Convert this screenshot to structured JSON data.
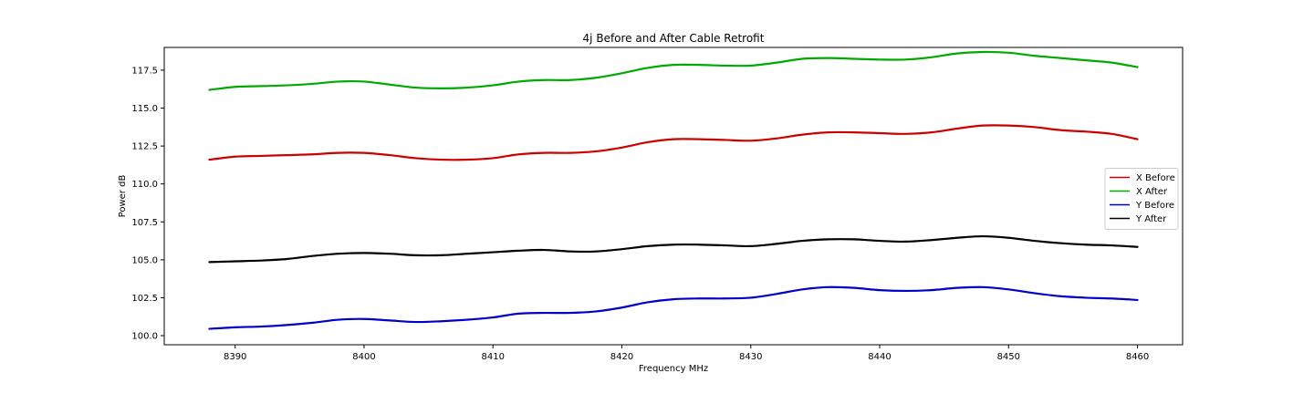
{
  "chart_data": {
    "type": "line",
    "title": "4j Before and After Cable Retrofit",
    "xlabel": "Frequency MHz",
    "ylabel": "Power dB",
    "xlim": [
      8384.5,
      8463.5
    ],
    "ylim": [
      99.4,
      119.0
    ],
    "xticks": [
      8390,
      8400,
      8410,
      8420,
      8430,
      8440,
      8450,
      8460
    ],
    "yticks": [
      100.0,
      102.5,
      105.0,
      107.5,
      110.0,
      112.5,
      115.0,
      117.5
    ],
    "grid": false,
    "legend_position": "center-right",
    "x": [
      8388,
      8390,
      8392,
      8394,
      8396,
      8398,
      8400,
      8402,
      8404,
      8406,
      8408,
      8410,
      8412,
      8414,
      8416,
      8418,
      8420,
      8422,
      8424,
      8426,
      8428,
      8430,
      8432,
      8434,
      8436,
      8438,
      8440,
      8442,
      8444,
      8446,
      8448,
      8450,
      8452,
      8454,
      8456,
      8458,
      8460
    ],
    "series": [
      {
        "name": "X Before",
        "color": "#cc0000",
        "values": [
          111.6,
          111.8,
          111.85,
          111.9,
          111.95,
          112.05,
          112.05,
          111.9,
          111.7,
          111.6,
          111.6,
          111.7,
          111.95,
          112.05,
          112.05,
          112.15,
          112.4,
          112.75,
          112.95,
          112.95,
          112.9,
          112.85,
          113.0,
          113.25,
          113.4,
          113.4,
          113.35,
          113.3,
          113.4,
          113.65,
          113.85,
          113.85,
          113.75,
          113.55,
          113.45,
          113.3,
          112.95
        ]
      },
      {
        "name": "X After",
        "color": "#00aa00",
        "values": [
          116.2,
          116.4,
          116.45,
          116.5,
          116.6,
          116.75,
          116.75,
          116.55,
          116.35,
          116.3,
          116.35,
          116.5,
          116.75,
          116.85,
          116.85,
          117.0,
          117.3,
          117.65,
          117.85,
          117.85,
          117.8,
          117.8,
          118.0,
          118.25,
          118.3,
          118.25,
          118.2,
          118.2,
          118.35,
          118.6,
          118.7,
          118.65,
          118.45,
          118.3,
          118.15,
          118.0,
          117.7
        ]
      },
      {
        "name": "Y Before",
        "color": "#0000cc",
        "values": [
          100.45,
          100.55,
          100.6,
          100.7,
          100.85,
          101.05,
          101.1,
          101.0,
          100.9,
          100.95,
          101.05,
          101.2,
          101.45,
          101.5,
          101.5,
          101.6,
          101.85,
          102.2,
          102.4,
          102.45,
          102.45,
          102.5,
          102.75,
          103.05,
          103.2,
          103.15,
          103.0,
          102.95,
          103.0,
          103.15,
          103.2,
          103.05,
          102.8,
          102.6,
          102.5,
          102.45,
          102.35
        ]
      },
      {
        "name": "Y After",
        "color": "#000000",
        "values": [
          104.85,
          104.9,
          104.95,
          105.05,
          105.25,
          105.4,
          105.45,
          105.4,
          105.3,
          105.3,
          105.4,
          105.5,
          105.6,
          105.65,
          105.55,
          105.55,
          105.7,
          105.9,
          106.0,
          106.0,
          105.95,
          105.9,
          106.05,
          106.25,
          106.35,
          106.35,
          106.25,
          106.2,
          106.3,
          106.45,
          106.55,
          106.45,
          106.25,
          106.1,
          106.0,
          105.95,
          105.85
        ]
      }
    ]
  }
}
